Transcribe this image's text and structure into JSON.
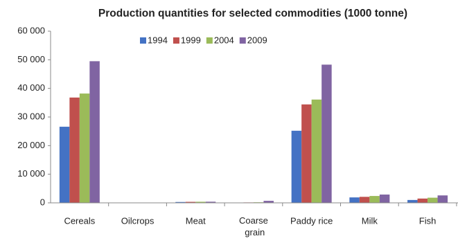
{
  "chart_data": {
    "type": "bar",
    "title": "Production quantities for selected commodities (1000 tonne)",
    "categories": [
      "Cereals",
      "Oilcrops",
      "Meat",
      "Coarse grain",
      "Paddy rice",
      "Milk",
      "Fish"
    ],
    "series": [
      {
        "name": "1994",
        "color": "#4472c4",
        "values": [
          26600,
          50,
          300,
          100,
          25200,
          1900,
          1000
        ]
      },
      {
        "name": "1999",
        "color": "#c0504d",
        "values": [
          36800,
          60,
          350,
          150,
          34400,
          2100,
          1500
        ]
      },
      {
        "name": "2004",
        "color": "#9bbb59",
        "values": [
          38200,
          70,
          380,
          200,
          36100,
          2400,
          1800
        ]
      },
      {
        "name": "2009",
        "color": "#8064a2",
        "values": [
          49500,
          80,
          400,
          700,
          48300,
          2900,
          2600
        ]
      }
    ],
    "ylim": [
      0,
      60000
    ],
    "yticks": [
      {
        "value": 0,
        "label": "0"
      },
      {
        "value": 10000,
        "label": "10 000"
      },
      {
        "value": 20000,
        "label": "20 000"
      },
      {
        "value": 30000,
        "label": "30 000"
      },
      {
        "value": 40000,
        "label": "40 000"
      },
      {
        "value": 50000,
        "label": "50 000"
      },
      {
        "value": 60000,
        "label": "60 000"
      }
    ],
    "grid": false,
    "legend": "top"
  }
}
